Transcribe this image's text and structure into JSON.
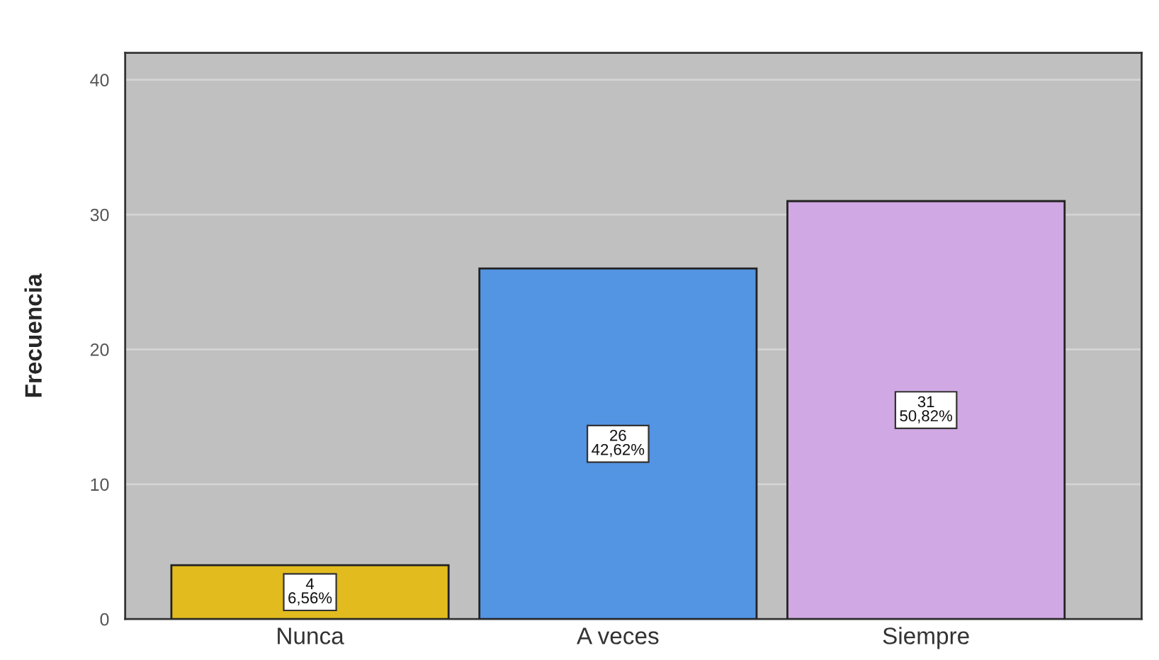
{
  "chart_data": {
    "type": "bar",
    "ylabel": "Frecuencia",
    "categories": [
      "Nunca",
      "A veces",
      "Siempre"
    ],
    "values": [
      4,
      26,
      31
    ],
    "colors": [
      "#e2bb1e",
      "#5394e3",
      "#d0a8e3"
    ],
    "value_labels": [
      "4\n6,56%",
      "26\n42,62%",
      "31\n50,82%"
    ],
    "ylim": [
      0,
      42
    ],
    "yticks": [
      0,
      10,
      20,
      30,
      40
    ],
    "grid": "y"
  }
}
